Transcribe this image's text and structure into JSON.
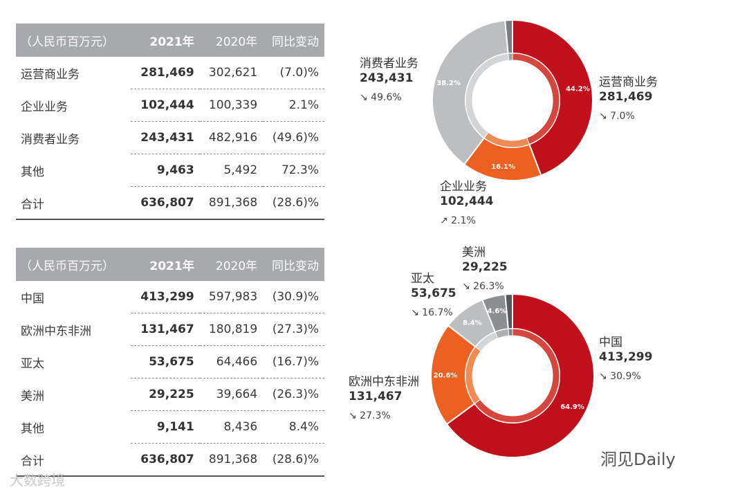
{
  "segment_table": {
    "headers": [
      "（人民币百万元）",
      "2021年",
      "2020年",
      "同比变动"
    ],
    "rows": [
      [
        "运营商业务",
        "281,469",
        "302,621",
        "(7.0)%"
      ],
      [
        "企业业务",
        "102,444",
        "100,339",
        "2.1%"
      ],
      [
        "消费者业务",
        "243,431",
        "482,916",
        "(49.6)%"
      ],
      [
        "其他",
        "9,463",
        "5,492",
        "72.3%"
      ],
      [
        "合计",
        "636,807",
        "891,368",
        "(28.6)%"
      ]
    ]
  },
  "region_table": {
    "headers": [
      "（人民币百万元）",
      "2021年",
      "2020年",
      "同比变动"
    ],
    "rows": [
      [
        "中国",
        "413,299",
        "597,983",
        "(30.9)%"
      ],
      [
        "欧洲中东非洲",
        "131,467",
        "180,819",
        "(27.3)%"
      ],
      [
        "亚太",
        "53,675",
        "64,466",
        "(16.7)%"
      ],
      [
        "美洲",
        "29,225",
        "39,664",
        "(26.3)%"
      ],
      [
        "其他",
        "9,141",
        "8,436",
        "8.4%"
      ],
      [
        "合计",
        "636,807",
        "891,368",
        "(28.6)%"
      ]
    ]
  },
  "chart_data": [
    {
      "type": "pie",
      "variant": "donut",
      "title": "",
      "slices": [
        {
          "name": "运营商业务",
          "value": 281469,
          "pct_label": "44.2%",
          "change": "7.0%",
          "direction": "down",
          "color": "#c0101c",
          "inner_color": "#d5473c"
        },
        {
          "name": "企业业务",
          "value": 102444,
          "pct_label": "16.1%",
          "change": "2.1%",
          "direction": "up",
          "color": "#ec6122",
          "inner_color": "#f08b55"
        },
        {
          "name": "消费者业务",
          "value": 243431,
          "pct_label": "38.2%",
          "change": "49.6%",
          "direction": "down",
          "color": "#bcbec0",
          "inner_color": "#d4d5d7"
        },
        {
          "name": "其他",
          "value": 9463,
          "pct_label": "",
          "change": "",
          "direction": "",
          "color": "#7a7c7f",
          "inner_color": "#a0a2a4"
        }
      ]
    },
    {
      "type": "pie",
      "variant": "donut",
      "title": "",
      "slices": [
        {
          "name": "中国",
          "value": 413299,
          "pct_label": "64.9%",
          "change": "30.9%",
          "direction": "down",
          "color": "#c0101c",
          "inner_color": "#d5473c"
        },
        {
          "name": "欧洲中东非洲",
          "value": 131467,
          "pct_label": "20.6%",
          "change": "27.3%",
          "direction": "down",
          "color": "#ec6122",
          "inner_color": "#f08b55"
        },
        {
          "name": "亚太",
          "value": 53675,
          "pct_label": "8.4%",
          "change": "16.7%",
          "direction": "down",
          "color": "#bcbec0",
          "inner_color": "#d4d5d7"
        },
        {
          "name": "美洲",
          "value": 29225,
          "pct_label": "4.6%",
          "change": "26.3%",
          "direction": "down",
          "color": "#8c8e91",
          "inner_color": "#aeb0b2"
        },
        {
          "name": "其他",
          "value": 9141,
          "pct_label": "",
          "change": "",
          "direction": "",
          "color": "#58595b",
          "inner_color": "#808183"
        }
      ]
    }
  ],
  "watermarks": {
    "right": "洞见Daily",
    "left": "大数跨境"
  }
}
